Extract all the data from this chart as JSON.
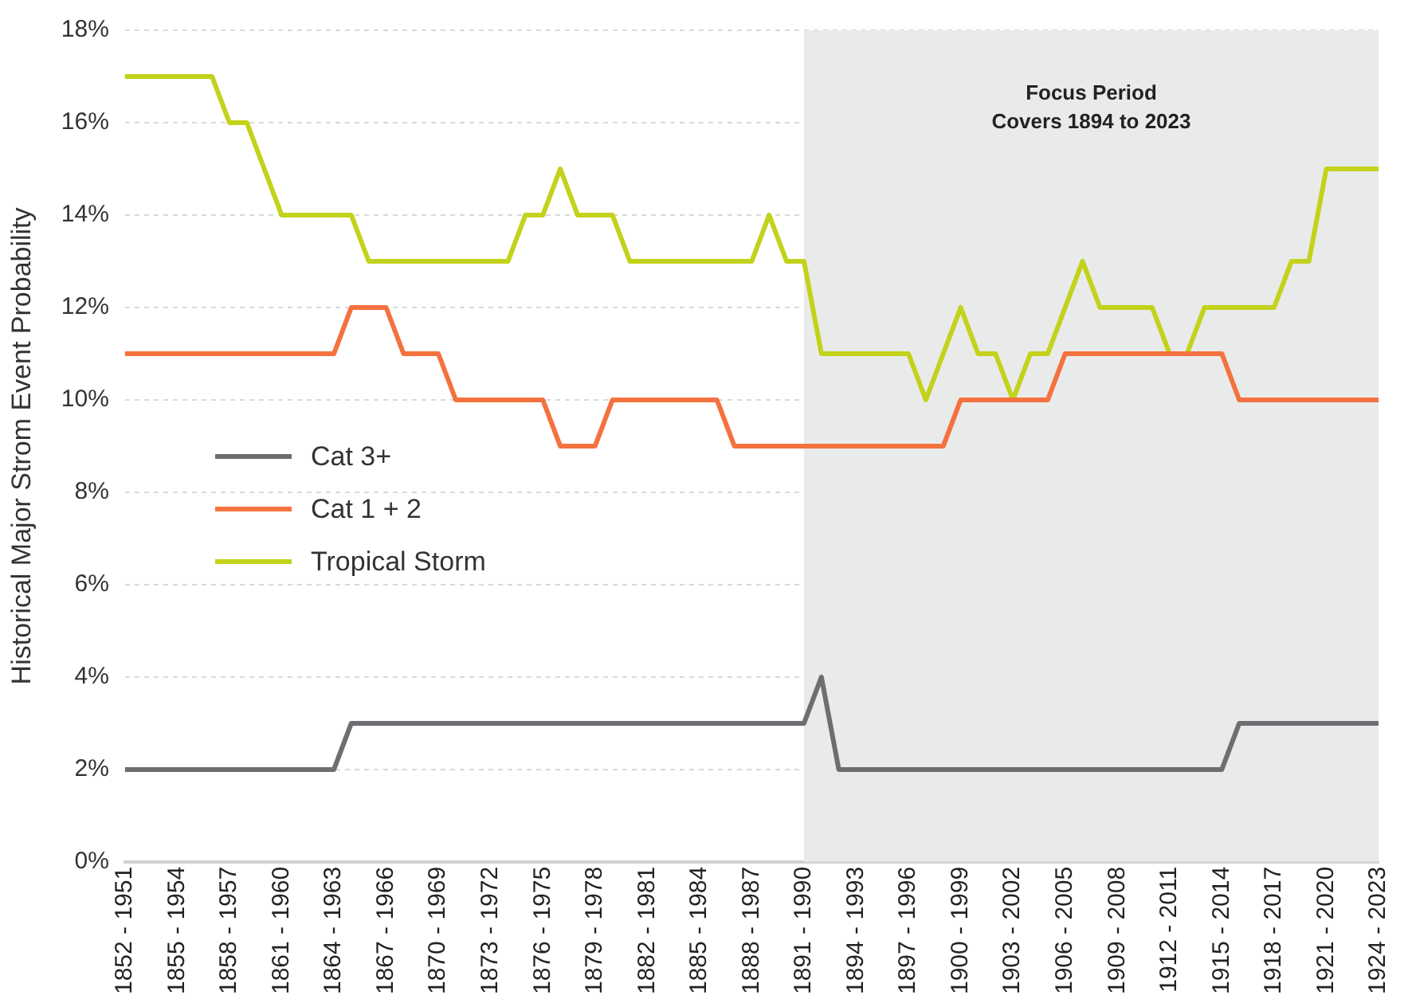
{
  "chart_data": {
    "type": "line",
    "ylabel": "Historical Major Strom Event Probability",
    "categories": [
      "1852 - 1951",
      null,
      null,
      "1855 - 1954",
      null,
      null,
      "1858 - 1957",
      null,
      null,
      "1861 - 1960",
      null,
      null,
      "1864 - 1963",
      null,
      null,
      "1867 - 1966",
      null,
      null,
      "1870 - 1969",
      null,
      null,
      "1873 - 1972",
      null,
      null,
      "1876 - 1975",
      null,
      null,
      "1879 - 1978",
      null,
      null,
      "1882 - 1981",
      null,
      null,
      "1885 - 1984",
      null,
      null,
      "1888 - 1987",
      null,
      null,
      "1891 - 1990",
      null,
      null,
      "1894 - 1993",
      null,
      null,
      "1897 - 1996",
      null,
      null,
      "1900 - 1999",
      null,
      null,
      "1903 - 2002",
      null,
      null,
      "1906 - 2005",
      null,
      null,
      "1909 - 2008",
      null,
      null,
      "1912 - 2011",
      null,
      null,
      "1915 - 2014",
      null,
      null,
      "1918 - 2017",
      null,
      null,
      "1921 - 2020",
      null,
      null,
      "1924 - 2023"
    ],
    "series": [
      {
        "name": "Cat 3+",
        "color": "#6d6e71",
        "values": [
          2,
          2,
          2,
          2,
          2,
          2,
          2,
          2,
          2,
          2,
          2,
          2,
          2,
          3,
          3,
          3,
          3,
          3,
          3,
          3,
          3,
          3,
          3,
          3,
          3,
          3,
          3,
          3,
          3,
          3,
          3,
          3,
          3,
          3,
          3,
          3,
          3,
          3,
          3,
          3,
          4,
          2,
          2,
          2,
          2,
          2,
          2,
          2,
          2,
          2,
          2,
          2,
          2,
          2,
          2,
          2,
          2,
          2,
          2,
          2,
          2,
          2,
          2,
          2,
          3,
          3,
          3,
          3,
          3,
          3,
          3,
          3,
          3
        ]
      },
      {
        "name": "Cat 1 + 2",
        "color": "#f4723f",
        "values": [
          11,
          11,
          11,
          11,
          11,
          11,
          11,
          11,
          11,
          11,
          11,
          11,
          11,
          12,
          12,
          12,
          11,
          11,
          11,
          10,
          10,
          10,
          10,
          10,
          10,
          9,
          9,
          9,
          10,
          10,
          10,
          10,
          10,
          10,
          10,
          9,
          9,
          9,
          9,
          9,
          9,
          9,
          9,
          9,
          9,
          9,
          9,
          9,
          10,
          10,
          10,
          10,
          10,
          10,
          11,
          11,
          11,
          11,
          11,
          11,
          11,
          11,
          11,
          11,
          10,
          10,
          10,
          10,
          10,
          10,
          10,
          10,
          10
        ]
      },
      {
        "name": "Tropical Storm",
        "color": "#c3d21a",
        "values": [
          17,
          17,
          17,
          17,
          17,
          17,
          16,
          16,
          15,
          14,
          14,
          14,
          14,
          14,
          13,
          13,
          13,
          13,
          13,
          13,
          13,
          13,
          13,
          14,
          14,
          15,
          14,
          14,
          14,
          13,
          13,
          13,
          13,
          13,
          13,
          13,
          13,
          14,
          13,
          13,
          11,
          11,
          11,
          11,
          11,
          11,
          10,
          11,
          12,
          11,
          11,
          10,
          11,
          11,
          12,
          13,
          12,
          12,
          12,
          12,
          11,
          11,
          12,
          12,
          12,
          12,
          12,
          13,
          13,
          15,
          15,
          15,
          15
        ]
      }
    ],
    "ylim": [
      0,
      18
    ],
    "yticks": [
      {
        "value": 0,
        "label": "0%"
      },
      {
        "value": 2,
        "label": "2%"
      },
      {
        "value": 4,
        "label": "4%"
      },
      {
        "value": 6,
        "label": "6%"
      },
      {
        "value": 8,
        "label": "8%"
      },
      {
        "value": 10,
        "label": "10%"
      },
      {
        "value": 12,
        "label": "12%"
      },
      {
        "value": 14,
        "label": "14%"
      },
      {
        "value": 16,
        "label": "16%"
      },
      {
        "value": 18,
        "label": "18%"
      }
    ],
    "bands": [
      {
        "axis": "x",
        "from": "1891 - 1990",
        "to": "1924 - 2023",
        "label": "Focus Period\nCovers 1894 to 2023",
        "color": "#e9ebea"
      }
    ],
    "grid": "y",
    "legend": "left",
    "marker": "none",
    "line_style": "solid"
  }
}
